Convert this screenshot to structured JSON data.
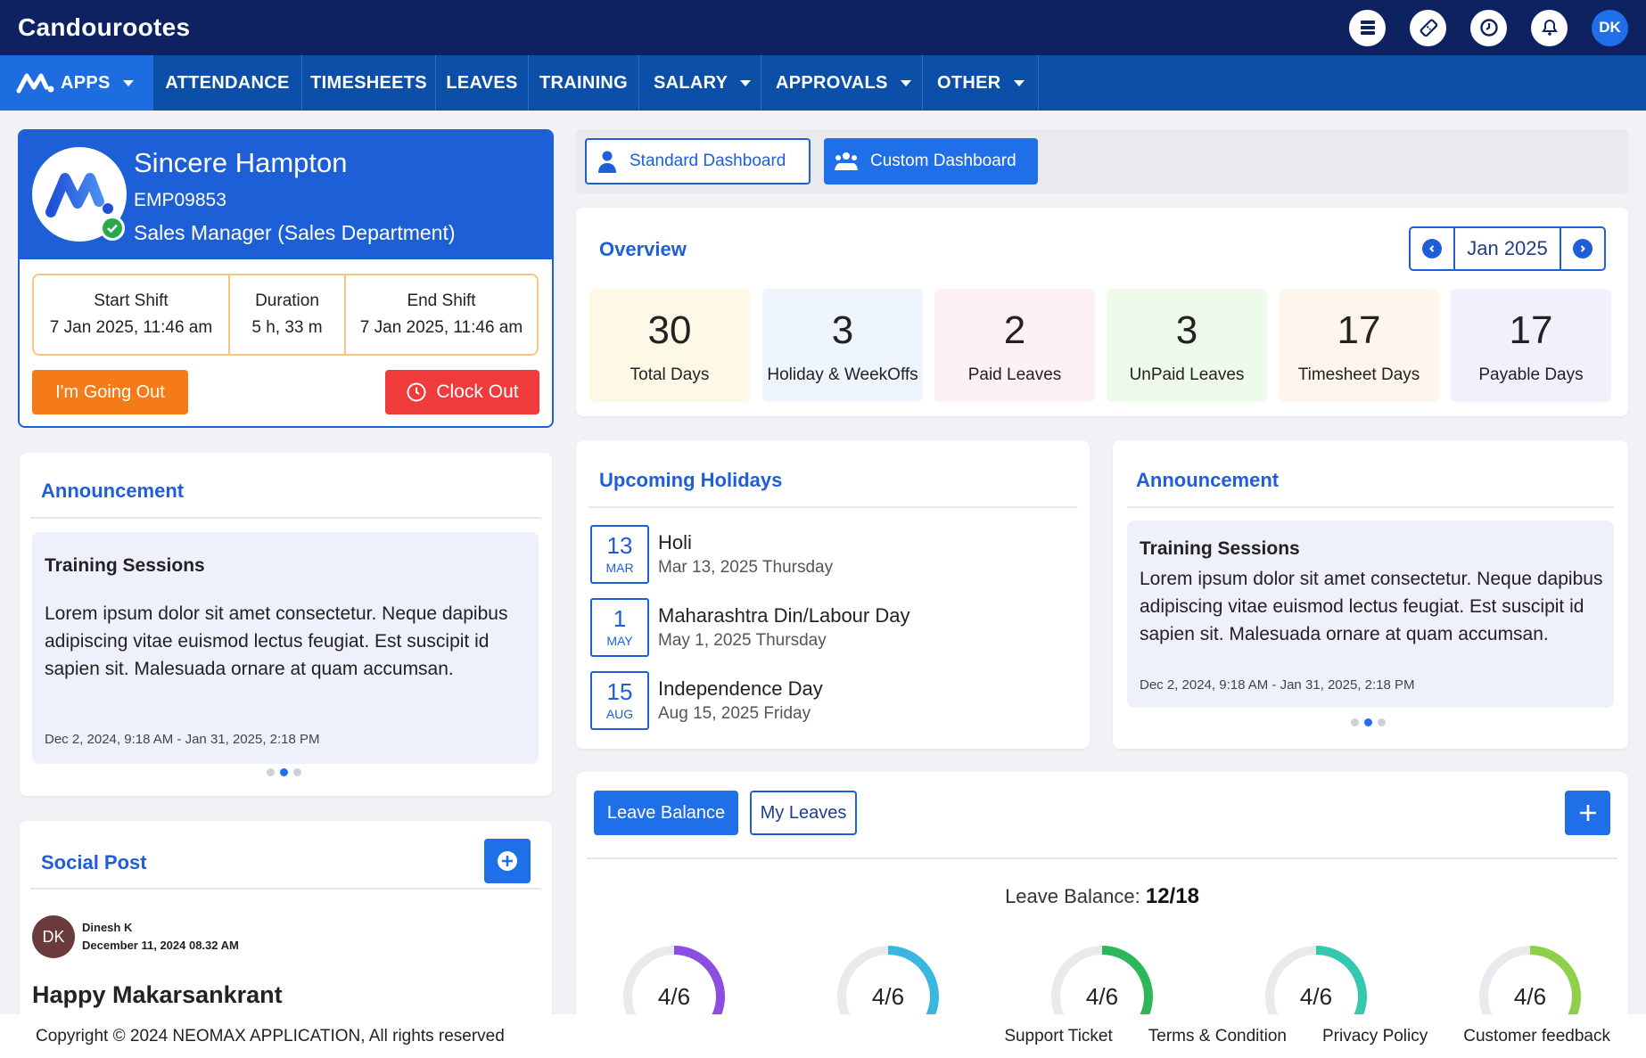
{
  "app": {
    "brand": "Candourootes"
  },
  "top_icons": {
    "avatar_initials": "DK"
  },
  "nav": {
    "apps_label": "APPS",
    "items": [
      "ATTENDANCE",
      "TIMESHEETS",
      "LEAVES",
      "TRAINING",
      "SALARY",
      "APPROVALS",
      "OTHER"
    ]
  },
  "profile": {
    "name": "Sincere Hampton",
    "emp_id": "EMP09853",
    "role": "Sales Manager (Sales Department)",
    "start_label": "Start Shift",
    "start_value": "7 Jan 2025, 11:46 am",
    "duration_label": "Duration",
    "duration_value": "5 h, 33 m",
    "end_label": "End Shift",
    "end_value": "7 Jan 2025, 11:46 am",
    "going_out_label": "I'm Going Out",
    "clock_out_label": "Clock Out"
  },
  "left_announcement": {
    "title": "Announcement",
    "item_title": "Training Sessions",
    "body": "Lorem ipsum dolor sit amet consectetur. Neque dapibus adipiscing vitae euismod lectus feugiat. Est suscipit id sapien sit. Malesuada ornare at quam accumsan.",
    "date_range": "Dec 2, 2024, 9:18 AM - Jan 31, 2025, 2:18 PM"
  },
  "social_post": {
    "title": "Social Post",
    "author_initials": "DK",
    "author": "Dinesh K",
    "timestamp": "December 11, 2024 08.32 AM",
    "post_title": "Happy Makarsankrant"
  },
  "dashboards": {
    "standard": "Standard Dashboard",
    "custom": "Custom Dashboard"
  },
  "overview": {
    "title": "Overview",
    "month": "Jan 2025",
    "stats": [
      {
        "value": "30",
        "label": "Total Days",
        "color": "#fdf9e6"
      },
      {
        "value": "3",
        "label": "Holiday & WeekOffs",
        "color": "#eef5fd"
      },
      {
        "value": "2",
        "label": "Paid Leaves",
        "color": "#fdf0f7"
      },
      {
        "value": "3",
        "label": "UnPaid Leaves",
        "color": "#effbea"
      },
      {
        "value": "17",
        "label": "Timesheet Days",
        "color": "#fef5ec"
      },
      {
        "value": "17",
        "label": "Payable Days",
        "color": "#f1f0fc"
      }
    ]
  },
  "holidays": {
    "title": "Upcoming Holidays",
    "items": [
      {
        "day": "13",
        "mon": "MAR",
        "name": "Holi",
        "date": "Mar 13, 2025 Thursday"
      },
      {
        "day": "1",
        "mon": "MAY",
        "name": "Maharashtra Din/Labour Day",
        "date": "May 1, 2025 Thursday"
      },
      {
        "day": "15",
        "mon": "AUG",
        "name": "Independence Day",
        "date": "Aug 15, 2025 Friday"
      }
    ]
  },
  "right_announcement": {
    "title": "Announcement",
    "item_title": "Training Sessions",
    "body": "Lorem ipsum dolor sit amet consectetur. Neque dapibus adipiscing vitae euismod lectus feugiat. Est suscipit id sapien sit. Malesuada ornare at quam accumsan.",
    "date_range": "Dec 2, 2024, 9:18 AM - Jan 31, 2025, 2:18 PM"
  },
  "leave": {
    "tab_balance": "Leave Balance",
    "tab_my": "My Leaves",
    "balance_label": "Leave Balance:",
    "balance_value": "12/18",
    "donuts": [
      {
        "label": "4/6",
        "used": 4,
        "total": 6,
        "color": "#8b4ee0"
      },
      {
        "label": "4/6",
        "used": 4,
        "total": 6,
        "color": "#3ab6e0"
      },
      {
        "label": "4/6",
        "used": 4,
        "total": 6,
        "color": "#2db75a"
      },
      {
        "label": "4/6",
        "used": 4,
        "total": 6,
        "color": "#34c8b0"
      },
      {
        "label": "4/6",
        "used": 4,
        "total": 6,
        "color": "#8fd04a"
      }
    ]
  },
  "footer": {
    "copyright": "Copyright © 2024 NEOMAX APPLICATION, All rights reserved",
    "links": [
      "Support Ticket",
      "Terms & Condition",
      "Privacy Policy",
      "Customer feedback"
    ]
  }
}
